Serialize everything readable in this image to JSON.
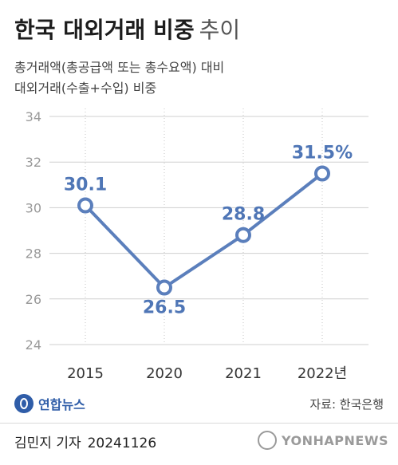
{
  "header": {
    "title_main": "한국 대외거래 비중",
    "title_light": "추이",
    "subtitle_line1": "총거래액(총공급액 또는 총수요액) 대비",
    "subtitle_line2": "대외거래(수출+수입) 비중"
  },
  "chart_data": {
    "type": "line",
    "categories": [
      "2015",
      "2020",
      "2021",
      "2022년"
    ],
    "values": [
      30.1,
      26.5,
      28.8,
      31.5
    ],
    "data_labels": [
      "30.1",
      "26.5",
      "28.8",
      "31.5%"
    ],
    "yticks": [
      "24",
      "26",
      "28",
      "30",
      "32",
      "34"
    ],
    "ylim": [
      24,
      34
    ],
    "grid": true,
    "line_color": "#5b7fbc",
    "label_color": "#4f76b6"
  },
  "footer": {
    "logo_text": "연합뉴스",
    "source": "자료: 한국은행",
    "reporter": "김민지 기자",
    "date": "20241126",
    "agency": "YONHAPNEWS"
  }
}
